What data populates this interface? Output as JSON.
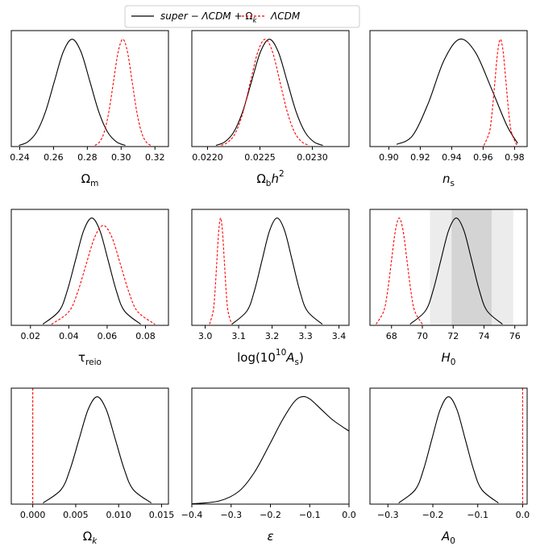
{
  "legend": {
    "entries": [
      {
        "label": [
          {
            "text": "super − ΛCDM",
            "italic": true
          },
          {
            "text": " + Ω"
          },
          {
            "text": "k",
            "sub": true,
            "italic": true
          }
        ],
        "color": "#000000",
        "dash": false
      },
      {
        "label": [
          {
            "text": "ΛCDM",
            "italic": true
          }
        ],
        "color": "#ff0000",
        "dash": true
      }
    ]
  },
  "chart_data": [
    {
      "type": "line",
      "xlabel": [
        {
          "text": "Ω"
        },
        {
          "text": "m",
          "sub": true
        }
      ],
      "xlim": [
        0.235,
        0.328
      ],
      "ylim": [
        0,
        1.08
      ],
      "xticks": [
        0.24,
        0.26,
        0.28,
        {
          "value": 0.3,
          "label": "0.30"
        },
        0.32
      ],
      "series": [
        {
          "color": "#000000",
          "dash": false,
          "x": [
            0.2395,
            0.24475,
            0.25,
            0.25525,
            0.2605,
            0.26575,
            0.271,
            0.27625,
            0.2815,
            0.28675,
            0.292,
            0.29725,
            0.3025
          ],
          "values": [
            0.011,
            0.044,
            0.135,
            0.325,
            0.607,
            0.882,
            1,
            0.882,
            0.607,
            0.325,
            0.135,
            0.044,
            0.011
          ]
        },
        {
          "color": "#ff0000",
          "dash": true,
          "x": [
            0.2845,
            0.28725,
            0.29,
            0.29275,
            0.2955,
            0.29825,
            0.301,
            0.30375,
            0.3065,
            0.30925,
            0.312,
            0.31475,
            0.3175
          ],
          "values": [
            0.011,
            0.044,
            0.135,
            0.325,
            0.607,
            0.882,
            1,
            0.882,
            0.607,
            0.325,
            0.135,
            0.044,
            0.011
          ]
        }
      ]
    },
    {
      "type": "line",
      "xlabel": [
        {
          "text": "Ω"
        },
        {
          "text": "b",
          "sub": true
        },
        {
          "text": "h",
          "italic": true
        },
        {
          "text": "2",
          "sup": true
        }
      ],
      "xlim": [
        0.02185,
        0.02335
      ],
      "ylim": [
        0,
        1.08
      ],
      "xticks": [
        {
          "value": 0.022,
          "label": "0.0220"
        },
        {
          "value": 0.0225,
          "label": "0.0225"
        },
        {
          "value": 0.023,
          "label": "0.0230"
        }
      ],
      "series": [
        {
          "color": "#000000",
          "dash": false,
          "x": [
            0.02208,
            0.022165,
            0.02225,
            0.022335,
            0.02242,
            0.022505,
            0.02259,
            0.022675,
            0.02276,
            0.022845,
            0.02293,
            0.023015,
            0.0231
          ],
          "values": [
            0.011,
            0.044,
            0.135,
            0.325,
            0.607,
            0.882,
            1,
            0.882,
            0.607,
            0.325,
            0.135,
            0.044,
            0.011
          ]
        },
        {
          "color": "#ff0000",
          "dash": true,
          "x": [
            0.02213,
            0.0222,
            0.02227,
            0.02234,
            0.02241,
            0.02248,
            0.02255,
            0.02262,
            0.02269,
            0.02276,
            0.02283,
            0.0229,
            0.02297
          ],
          "values": [
            0.011,
            0.044,
            0.135,
            0.325,
            0.607,
            0.882,
            1,
            0.882,
            0.607,
            0.325,
            0.135,
            0.044,
            0.011
          ]
        }
      ]
    },
    {
      "type": "line",
      "xlabel": [
        {
          "text": "n",
          "italic": true
        },
        {
          "text": "s",
          "sub": true
        }
      ],
      "xlim": [
        0.888,
        0.988
      ],
      "ylim": [
        0,
        1.08
      ],
      "xticks": [
        {
          "value": 0.9,
          "label": "0.90"
        },
        0.92,
        0.94,
        0.96,
        0.98
      ],
      "series": [
        {
          "color": "#000000",
          "dash": false,
          "x": [
            0.905,
            0.915,
            0.925,
            0.935,
            0.945,
            0.955,
            0.965,
            0.975,
            0.982
          ],
          "values": [
            0.02,
            0.1,
            0.4,
            0.8,
            1,
            0.88,
            0.55,
            0.2,
            0.03
          ]
        },
        {
          "color": "#ff0000",
          "dash": true,
          "x": [
            0.9605,
            0.964,
            0.96575,
            0.9675,
            0.96925,
            0.971,
            0.97275,
            0.9745,
            0.97625,
            0.978,
            0.9815
          ],
          "values": [
            0.011,
            0.135,
            0.325,
            0.607,
            0.882,
            1,
            0.882,
            0.607,
            0.325,
            0.135,
            0.011
          ]
        }
      ]
    },
    {
      "type": "line",
      "xlabel": [
        {
          "text": "τ"
        },
        {
          "text": "reio",
          "sub": true
        }
      ],
      "xlim": [
        0.01,
        0.092
      ],
      "ylim": [
        0,
        1.08
      ],
      "xticks": [
        0.02,
        0.04,
        0.06,
        0.08
      ],
      "series": [
        {
          "color": "#000000",
          "dash": false,
          "x": [
            0.0265,
            0.035,
            0.03925,
            0.0435,
            0.04775,
            0.052,
            0.05625,
            0.0605,
            0.06475,
            0.069,
            0.0775
          ],
          "values": [
            0.011,
            0.135,
            0.325,
            0.607,
            0.882,
            1,
            0.882,
            0.607,
            0.325,
            0.135,
            0.011
          ]
        },
        {
          "color": "#ff0000",
          "dash": true,
          "x": [
            0.031,
            0.04,
            0.0445,
            0.049,
            0.0535,
            0.058,
            0.0625,
            0.067,
            0.0715,
            0.076,
            0.085
          ],
          "values": [
            0.01,
            0.126,
            0.302,
            0.565,
            0.82,
            0.93,
            0.82,
            0.565,
            0.302,
            0.126,
            0.01
          ]
        }
      ]
    },
    {
      "type": "line",
      "xlabel": [
        {
          "text": "log(10"
        },
        {
          "text": "10",
          "sup": true
        },
        {
          "text": "A",
          "italic": true
        },
        {
          "text": "s",
          "sub": true
        },
        {
          "text": ")"
        }
      ],
      "xlim": [
        2.96,
        3.43
      ],
      "ylim": [
        0,
        1.08
      ],
      "xticks": [
        {
          "value": 3,
          "label": "3.0"
        },
        3.1,
        3.2,
        3.3,
        3.4
      ],
      "series": [
        {
          "color": "#000000",
          "dash": false,
          "x": [
            3.08,
            3.125,
            3.1475,
            3.17,
            3.1925,
            3.215,
            3.2375,
            3.26,
            3.2825,
            3.305,
            3.35
          ],
          "values": [
            0.011,
            0.135,
            0.325,
            0.607,
            0.882,
            1,
            0.882,
            0.607,
            0.325,
            0.135,
            0.011
          ]
        },
        {
          "color": "#ff0000",
          "dash": true,
          "x": [
            3.013,
            3.024,
            3.0295,
            3.035,
            3.0405,
            3.046,
            3.0515,
            3.057,
            3.0625,
            3.068,
            3.079
          ],
          "values": [
            0.011,
            0.135,
            0.325,
            0.607,
            0.882,
            1,
            0.882,
            0.607,
            0.325,
            0.135,
            0.011
          ]
        }
      ]
    },
    {
      "type": "line",
      "xlabel": [
        {
          "text": "H",
          "italic": true
        },
        {
          "text": "0",
          "sub": true
        }
      ],
      "xlim": [
        66.6,
        76.8
      ],
      "ylim": [
        0,
        1.08
      ],
      "xticks": [
        68,
        70,
        72,
        74,
        76
      ],
      "bands": [
        {
          "range": [
            70.5,
            75.9
          ],
          "color": "#ececec"
        },
        {
          "range": [
            71.9,
            74.5
          ],
          "color": "#d4d4d4"
        }
      ],
      "series": [
        {
          "color": "#000000",
          "dash": false,
          "x": [
            69.2,
            70.2,
            70.7,
            71.2,
            71.7,
            72.2,
            72.7,
            73.2,
            73.7,
            74.2,
            75.2
          ],
          "values": [
            0.011,
            0.135,
            0.325,
            0.607,
            0.882,
            1,
            0.882,
            0.607,
            0.325,
            0.135,
            0.011
          ]
        },
        {
          "color": "#ff0000",
          "dash": true,
          "x": [
            67,
            67.5,
            67.75,
            68,
            68.25,
            68.5,
            68.75,
            69,
            69.25,
            69.5,
            70
          ],
          "values": [
            0.011,
            0.135,
            0.325,
            0.607,
            0.882,
            1,
            0.882,
            0.607,
            0.325,
            0.135,
            0.011
          ]
        }
      ]
    },
    {
      "type": "line",
      "xlabel": [
        {
          "text": "Ω"
        },
        {
          "text": "k",
          "sub": true,
          "italic": true
        }
      ],
      "xlim": [
        -0.0025,
        0.0158
      ],
      "ylim": [
        0,
        1.08
      ],
      "xticks": [
        {
          "value": 0,
          "label": "0.000"
        },
        0.005,
        {
          "value": 0.01,
          "label": "0.010"
        },
        0.015
      ],
      "vlines": [
        {
          "x": 0,
          "color": "#ff0000",
          "dash": true
        }
      ],
      "series": [
        {
          "color": "#000000",
          "dash": false,
          "x": [
            0.0012,
            0.0033,
            0.00435,
            0.0054,
            0.00645,
            0.0075,
            0.00855,
            0.0096,
            0.01065,
            0.0117,
            0.0138
          ],
          "values": [
            0.011,
            0.135,
            0.325,
            0.607,
            0.882,
            1,
            0.882,
            0.607,
            0.325,
            0.135,
            0.011
          ]
        }
      ]
    },
    {
      "type": "line",
      "xlabel": [
        {
          "text": "ε",
          "italic": true
        }
      ],
      "xlim": [
        -0.4,
        0
      ],
      "ylim": [
        0,
        1.08
      ],
      "xticks": [
        {
          "value": -0.4,
          "label": "−0.4"
        },
        {
          "value": -0.3,
          "label": "−0.3"
        },
        {
          "value": -0.2,
          "label": "−0.2"
        },
        {
          "value": -0.1,
          "label": "−0.1"
        },
        {
          "value": 0,
          "label": "0.0"
        }
      ],
      "series": [
        {
          "color": "#000000",
          "dash": false,
          "x": [
            -0.4,
            -0.33,
            -0.28,
            -0.24,
            -0.2,
            -0.17,
            -0.14,
            -0.12,
            -0.1,
            -0.07,
            -0.04,
            0
          ],
          "values": [
            0.002,
            0.03,
            0.12,
            0.3,
            0.57,
            0.78,
            0.95,
            1,
            0.98,
            0.88,
            0.78,
            0.68
          ]
        }
      ]
    },
    {
      "type": "line",
      "xlabel": [
        {
          "text": "A",
          "italic": true
        },
        {
          "text": "0",
          "sub": true
        }
      ],
      "xlim": [
        -0.34,
        0.01
      ],
      "ylim": [
        0,
        1.08
      ],
      "xticks": [
        {
          "value": -0.3,
          "label": "−0.3"
        },
        {
          "value": -0.2,
          "label": "−0.2"
        },
        {
          "value": -0.1,
          "label": "−0.1"
        },
        {
          "value": 0,
          "label": "0.0"
        }
      ],
      "vlines": [
        {
          "x": 0,
          "color": "#ff0000",
          "dash": true
        }
      ],
      "series": [
        {
          "color": "#000000",
          "dash": false,
          "x": [
            -0.276,
            -0.239,
            -0.2205,
            -0.202,
            -0.1835,
            -0.165,
            -0.1465,
            -0.128,
            -0.1095,
            -0.091,
            -0.054
          ],
          "values": [
            0.011,
            0.135,
            0.325,
            0.607,
            0.882,
            1,
            0.882,
            0.607,
            0.325,
            0.135,
            0.011
          ]
        }
      ]
    }
  ]
}
